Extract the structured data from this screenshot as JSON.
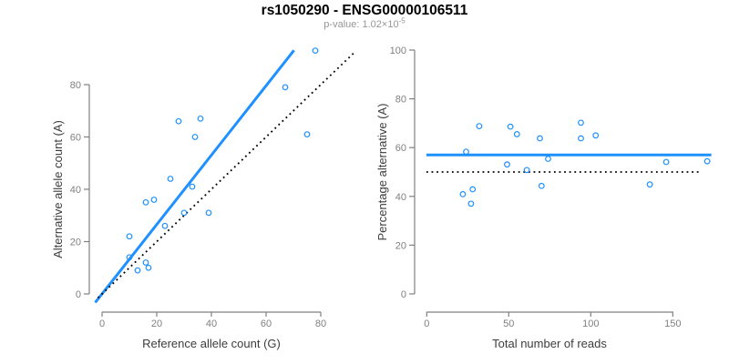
{
  "header": {
    "title": "rs1050290 - ENSG00000106511",
    "subtitle_main": "p-value: 1.02×10",
    "subtitle_exponent": "-5"
  },
  "colors": {
    "accent_blue": "#1E90FF",
    "dotted_line_black": "#000000",
    "axis_line_gray": "#808080",
    "tick_label_gray": "#808080",
    "axis_title_dark": "#3C3C3C",
    "title_black": "#000000",
    "subtitle_gray": "#969696"
  },
  "chart_data": [
    {
      "id": "ref-vs-alt-scatter",
      "type": "scatter",
      "xlabel": "Reference allele count (G)",
      "ylabel": "Alternative allele count (A)",
      "xticks": [
        0,
        20,
        40,
        60,
        80
      ],
      "yticks": [
        0,
        20,
        40,
        60,
        80
      ],
      "xlim": [
        0,
        92
      ],
      "ylim": [
        0,
        93
      ],
      "grid": false,
      "points": [
        [
          10,
          22
        ],
        [
          10,
          14
        ],
        [
          13,
          9
        ],
        [
          16,
          12
        ],
        [
          17,
          10
        ],
        [
          16,
          35
        ],
        [
          19,
          36
        ],
        [
          23,
          26
        ],
        [
          25,
          44
        ],
        [
          28,
          66
        ],
        [
          30,
          31
        ],
        [
          33,
          41
        ],
        [
          34,
          60
        ],
        [
          36,
          67
        ],
        [
          39,
          31
        ],
        [
          67,
          79
        ],
        [
          75,
          61
        ],
        [
          78,
          93
        ]
      ],
      "lines": [
        {
          "name": "fitted-ratio-line",
          "style": "solid",
          "color": "#1E90FF",
          "x1": -2.5,
          "y1": -3.3,
          "x2": 70.2,
          "y2": 93.1
        },
        {
          "name": "identity-line",
          "style": "dotted",
          "color": "#000000",
          "x1": -1.5,
          "y1": -1.5,
          "x2": 92,
          "y2": 92
        }
      ]
    },
    {
      "id": "reads-vs-pct-scatter",
      "type": "scatter",
      "xlabel": "Total number of reads",
      "ylabel": "Percentage alternative (A)",
      "xticks": [
        0,
        50,
        100,
        150
      ],
      "yticks": [
        0,
        20,
        40,
        60,
        80,
        100
      ],
      "xlim": [
        0,
        174
      ],
      "ylim": [
        0,
        100
      ],
      "grid": false,
      "points": [
        [
          32,
          68.8
        ],
        [
          24,
          58.3
        ],
        [
          22,
          40.9
        ],
        [
          28,
          42.9
        ],
        [
          27,
          37.0
        ],
        [
          51,
          68.6
        ],
        [
          55,
          65.5
        ],
        [
          49,
          53.1
        ],
        [
          69,
          63.8
        ],
        [
          94,
          70.2
        ],
        [
          61,
          50.8
        ],
        [
          74,
          55.4
        ],
        [
          94,
          63.8
        ],
        [
          103,
          65.0
        ],
        [
          70,
          44.3
        ],
        [
          146,
          54.1
        ],
        [
          136,
          44.9
        ],
        [
          171,
          54.4
        ]
      ],
      "lines": [
        {
          "name": "mean-percentage-line",
          "style": "solid",
          "color": "#1E90FF",
          "x1": -0.2,
          "y1": 57,
          "x2": 173.5,
          "y2": 57
        },
        {
          "name": "null-50pct-line",
          "style": "dotted",
          "color": "#000000",
          "x1": -0.2,
          "y1": 50,
          "x2": 167.5,
          "y2": 50
        }
      ]
    }
  ]
}
